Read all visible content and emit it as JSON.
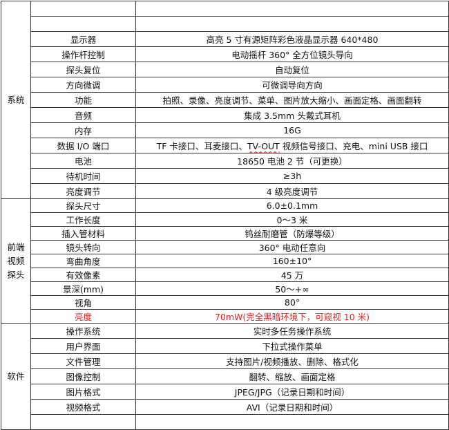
{
  "accent_red": "#e0201e",
  "sections": [
    {
      "category": "系统",
      "rows": [
        {
          "name": "",
          "value": ""
        },
        {
          "name": "",
          "value": ""
        },
        {
          "name": "显示器",
          "value": "高亮 5 寸有源矩阵彩色液晶显示器 640*480"
        },
        {
          "name": "操作杆控制",
          "value": "电动摇杆 360° 全方位镜头导向"
        },
        {
          "name": "探头复位",
          "value": "自动复位"
        },
        {
          "name": "方向微调",
          "value": "可微调导向方向"
        },
        {
          "name": "功能",
          "value": "拍照、录像、亮度调节、菜单、图片放大缩小、画面定格、画面翻转"
        },
        {
          "name": "音频",
          "value": "集成 3.5mm 头戴式耳机"
        },
        {
          "name": "内存",
          "value": "16G"
        },
        {
          "name": "数据 I/O 端口",
          "value_pre": "TF 卡接口、耳麦接口、",
          "value_wavy": "TV-OUT",
          "value_post": " 视频信号接口、充电、mini USB 接口"
        },
        {
          "name": "电池",
          "value": "18650 电池 2 节（可更换）"
        },
        {
          "name": "待机时间",
          "value": "≥3h"
        },
        {
          "name": "亮度调节",
          "value": "4 级亮度调节"
        }
      ]
    },
    {
      "category": "前端视频探头",
      "category_lines": [
        "前端",
        "视频",
        "探头"
      ],
      "rows": [
        {
          "name": "探头尺寸",
          "value": "6.0±0.1mm"
        },
        {
          "name": "工作长度",
          "value": "0～3 米"
        },
        {
          "name": "插入管材料",
          "value": "钨丝耐磨管（防爆等级）"
        },
        {
          "name": "镜头转向",
          "value": "360° 电动任意向"
        },
        {
          "name": "弯曲角度",
          "value": "160±10°"
        },
        {
          "name": "有效像素",
          "value": "45 万"
        },
        {
          "name": "景深(mm)",
          "value": "50～+∞"
        },
        {
          "name": "视角",
          "value": "80°"
        },
        {
          "name": "亮度",
          "value": "70mW(完全黑暗环境下，可窥视 10 米)",
          "highlight": true
        }
      ]
    },
    {
      "category": "软件",
      "rows": [
        {
          "name": "操作系统",
          "value": "实时多任务操作系统"
        },
        {
          "name": "用户界面",
          "value": "下拉式操作菜单"
        },
        {
          "name": "文件管理",
          "value": "支持图片/视频播放、删除、格式化"
        },
        {
          "name": "图像控制",
          "value": "翻转、缩放、画面定格"
        },
        {
          "name": "图片格式",
          "value": "JPEG/JPG（记录日期和时间）"
        },
        {
          "name": "视频格式",
          "value": "AVI（记录日期和时间）"
        },
        {
          "name": "",
          "value": ""
        }
      ]
    }
  ]
}
